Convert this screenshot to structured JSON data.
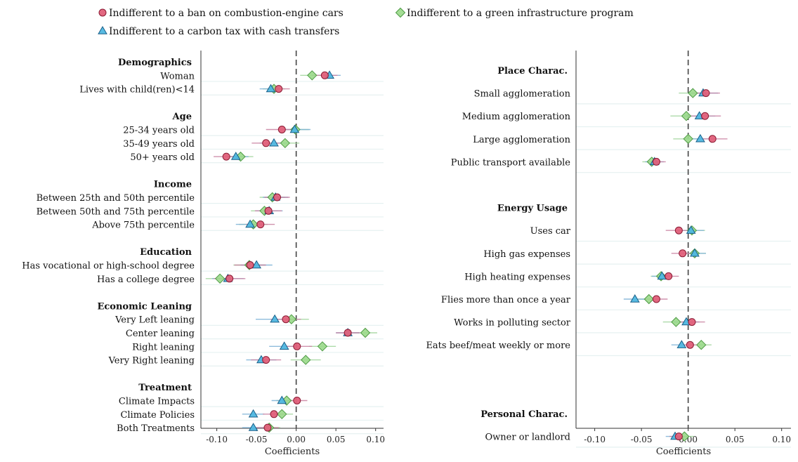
{
  "legend": [
    {
      "key": "ban",
      "label": "Indifferent to a ban on combustion-engine cars"
    },
    {
      "key": "green",
      "label": "Indifferent to a green infrastructure program"
    },
    {
      "key": "tax",
      "label": "Indifferent to a carbon tax with cash transfers"
    }
  ],
  "colors": {
    "ban": "#e0607a",
    "ban_stroke": "#8a1a33",
    "ban_ci": "#c87fa0",
    "tax": "#4fb7e0",
    "tax_stroke": "#1a5f88",
    "tax_ci": "#7ab0d6",
    "green": "#9ad98a",
    "green_stroke": "#4e9a45",
    "green_ci": "#9fd49a",
    "band": "#e6f1f1"
  },
  "chart_data": [
    {
      "type": "scatter",
      "xlabel": "Coefficients",
      "xlim": [
        -0.12,
        0.11
      ],
      "xticks": [
        -0.1,
        -0.05,
        0.0,
        0.05,
        0.1
      ],
      "tick_labels": [
        "-0.10",
        "-0.05",
        "0.00",
        "0.05",
        "0.10"
      ],
      "zero_line": "dashed",
      "rows": [
        {
          "kind": "header",
          "label": "Demographics"
        },
        {
          "kind": "var",
          "label": "Woman",
          "ban": [
            0.036,
            0.02,
            0.052
          ],
          "tax": [
            0.042,
            0.028,
            0.056
          ],
          "green": [
            0.02,
            0.005,
            0.035
          ]
        },
        {
          "kind": "var",
          "label": "Lives with child(ren)<14",
          "ban": [
            -0.022,
            -0.036,
            -0.008
          ],
          "tax": [
            -0.032,
            -0.046,
            -0.018
          ],
          "green": [
            -0.028,
            -0.042,
            -0.014
          ]
        },
        {
          "kind": "gap"
        },
        {
          "kind": "header",
          "label": "Age"
        },
        {
          "kind": "var",
          "label": "25-34 years old",
          "ban": [
            -0.018,
            -0.038,
            0.002
          ],
          "tax": [
            -0.002,
            -0.02,
            0.018
          ],
          "green": [
            -0.001,
            -0.018,
            0.016
          ]
        },
        {
          "kind": "var",
          "label": "35-49 years old",
          "ban": [
            -0.038,
            -0.056,
            -0.02
          ],
          "tax": [
            -0.028,
            -0.046,
            -0.01
          ],
          "green": [
            -0.014,
            -0.032,
            0.004
          ]
        },
        {
          "kind": "var",
          "label": "50+ years old",
          "ban": [
            -0.088,
            -0.104,
            -0.072
          ],
          "tax": [
            -0.076,
            -0.092,
            -0.06
          ],
          "green": [
            -0.07,
            -0.086,
            -0.054
          ]
        },
        {
          "kind": "gap"
        },
        {
          "kind": "header",
          "label": "Income"
        },
        {
          "kind": "var",
          "label": "Between 25th and 50th percentile",
          "ban": [
            -0.024,
            -0.04,
            -0.008
          ],
          "tax": [
            -0.026,
            -0.042,
            -0.01
          ],
          "green": [
            -0.03,
            -0.046,
            -0.014
          ]
        },
        {
          "kind": "var",
          "label": "Between 50th and 75th percentile",
          "ban": [
            -0.035,
            -0.052,
            -0.018
          ],
          "tax": [
            -0.034,
            -0.051,
            -0.017
          ],
          "green": [
            -0.04,
            -0.057,
            -0.023
          ]
        },
        {
          "kind": "var",
          "label": "Above 75th percentile",
          "ban": [
            -0.045,
            -0.063,
            -0.027
          ],
          "tax": [
            -0.058,
            -0.076,
            -0.04
          ],
          "green": [
            -0.054,
            -0.072,
            -0.036
          ]
        },
        {
          "kind": "gap"
        },
        {
          "kind": "header",
          "label": "Education"
        },
        {
          "kind": "var",
          "label": "Has vocational or high-school degree",
          "ban": [
            -0.058,
            -0.078,
            -0.038
          ],
          "tax": [
            -0.05,
            -0.07,
            -0.03
          ],
          "green": [
            -0.059,
            -0.079,
            -0.039
          ]
        },
        {
          "kind": "var",
          "label": "Has a college degree",
          "ban": [
            -0.084,
            -0.104,
            -0.064
          ],
          "tax": [
            -0.086,
            -0.106,
            -0.066
          ],
          "green": [
            -0.096,
            -0.114,
            -0.078
          ]
        },
        {
          "kind": "gap"
        },
        {
          "kind": "header",
          "label": "Economic Leaning"
        },
        {
          "kind": "var",
          "label": "Very Left leaning",
          "ban": [
            -0.013,
            -0.032,
            0.006
          ],
          "tax": [
            -0.027,
            -0.051,
            -0.003
          ],
          "green": [
            -0.006,
            -0.028,
            0.016
          ]
        },
        {
          "kind": "var",
          "label": "Center leaning",
          "ban": [
            0.065,
            0.05,
            0.08
          ],
          "tax": [
            0.065,
            0.05,
            0.08
          ],
          "green": [
            0.087,
            0.072,
            0.102
          ]
        },
        {
          "kind": "var",
          "label": "Right leaning",
          "ban": [
            0.001,
            -0.018,
            0.02
          ],
          "tax": [
            -0.015,
            -0.034,
            0.004
          ],
          "green": [
            0.033,
            0.016,
            0.05
          ]
        },
        {
          "kind": "var",
          "label": "Very Right leaning",
          "ban": [
            -0.038,
            -0.057,
            -0.019
          ],
          "tax": [
            -0.044,
            -0.063,
            -0.025
          ],
          "green": [
            0.012,
            -0.007,
            0.031
          ]
        },
        {
          "kind": "gap"
        },
        {
          "kind": "header",
          "label": "Treatment"
        },
        {
          "kind": "var",
          "label": "Climate Impacts",
          "ban": [
            0.001,
            -0.012,
            0.014
          ],
          "tax": [
            -0.018,
            -0.031,
            -0.005
          ],
          "green": [
            -0.012,
            -0.025,
            0.001
          ]
        },
        {
          "kind": "var",
          "label": "Climate Policies",
          "ban": [
            -0.028,
            -0.042,
            -0.014
          ],
          "tax": [
            -0.054,
            -0.068,
            -0.04
          ],
          "green": [
            -0.018,
            -0.032,
            -0.004
          ]
        },
        {
          "kind": "var",
          "label": "Both Treatments",
          "ban": [
            -0.036,
            -0.05,
            -0.022
          ],
          "tax": [
            -0.054,
            -0.068,
            -0.04
          ],
          "green": [
            -0.034,
            -0.048,
            -0.02
          ]
        }
      ]
    },
    {
      "type": "scatter",
      "xlabel": "Coefficients",
      "xlim": [
        -0.12,
        0.11
      ],
      "xticks": [
        -0.1,
        -0.05,
        0.0,
        0.05,
        0.1
      ],
      "tick_labels": [
        "-0.10",
        "-0.05",
        "0.00",
        "0.05",
        "0.10"
      ],
      "zero_line": "dashed",
      "rows": [
        {
          "kind": "header",
          "label": "Place Charac."
        },
        {
          "kind": "var",
          "label": "Small agglomeration",
          "ban": [
            0.019,
            0.004,
            0.034
          ],
          "tax": [
            0.016,
            0.0,
            0.032
          ],
          "green": [
            0.005,
            -0.01,
            0.02
          ]
        },
        {
          "kind": "var",
          "label": "Medium agglomeration",
          "ban": [
            0.018,
            0.001,
            0.035
          ],
          "tax": [
            0.012,
            -0.005,
            0.029
          ],
          "green": [
            -0.002,
            -0.019,
            0.015
          ]
        },
        {
          "kind": "var",
          "label": "Large agglomeration",
          "ban": [
            0.026,
            0.01,
            0.042
          ],
          "tax": [
            0.013,
            -0.003,
            0.029
          ],
          "green": [
            0.0,
            -0.016,
            0.016
          ]
        },
        {
          "kind": "var",
          "label": "Public transport available",
          "ban": [
            -0.034,
            -0.044,
            -0.024
          ],
          "tax": [
            -0.036,
            -0.046,
            -0.026
          ],
          "green": [
            -0.039,
            -0.049,
            -0.029
          ]
        },
        {
          "kind": "gap"
        },
        {
          "kind": "header",
          "label": "Energy Usage"
        },
        {
          "kind": "var",
          "label": "Uses car",
          "ban": [
            -0.01,
            -0.024,
            0.004
          ],
          "tax": [
            0.003,
            -0.011,
            0.017
          ],
          "green": [
            0.004,
            -0.01,
            0.018
          ]
        },
        {
          "kind": "var",
          "label": "High gas expenses",
          "ban": [
            -0.006,
            -0.018,
            0.006
          ],
          "tax": [
            0.007,
            -0.005,
            0.019
          ],
          "green": [
            0.007,
            -0.005,
            0.019
          ]
        },
        {
          "kind": "var",
          "label": "High heating expenses",
          "ban": [
            -0.021,
            -0.032,
            -0.01
          ],
          "tax": [
            -0.028,
            -0.039,
            -0.017
          ],
          "green": [
            -0.029,
            -0.04,
            -0.018
          ]
        },
        {
          "kind": "var",
          "label": "Flies more than once a year",
          "ban": [
            -0.034,
            -0.046,
            -0.022
          ],
          "tax": [
            -0.057,
            -0.069,
            -0.045
          ],
          "green": [
            -0.042,
            -0.054,
            -0.03
          ]
        },
        {
          "kind": "var",
          "label": "Works in polluting sector",
          "ban": [
            0.004,
            -0.01,
            0.018
          ],
          "tax": [
            -0.002,
            -0.016,
            0.012
          ],
          "green": [
            -0.013,
            -0.027,
            0.001
          ]
        },
        {
          "kind": "var",
          "label": "Eats beef/meat weekly or more",
          "ban": [
            0.002,
            -0.009,
            0.013
          ],
          "tax": [
            -0.007,
            -0.018,
            0.004
          ],
          "green": [
            0.014,
            0.003,
            0.025
          ]
        },
        {
          "kind": "gap"
        },
        {
          "kind": "gap"
        },
        {
          "kind": "header",
          "label": "Personal Charac."
        },
        {
          "kind": "var",
          "label": "Owner or landlord",
          "ban": [
            -0.01,
            -0.02,
            0.0
          ],
          "tax": [
            -0.014,
            -0.024,
            -0.004
          ],
          "green": [
            -0.004,
            -0.014,
            0.006
          ]
        }
      ]
    }
  ]
}
